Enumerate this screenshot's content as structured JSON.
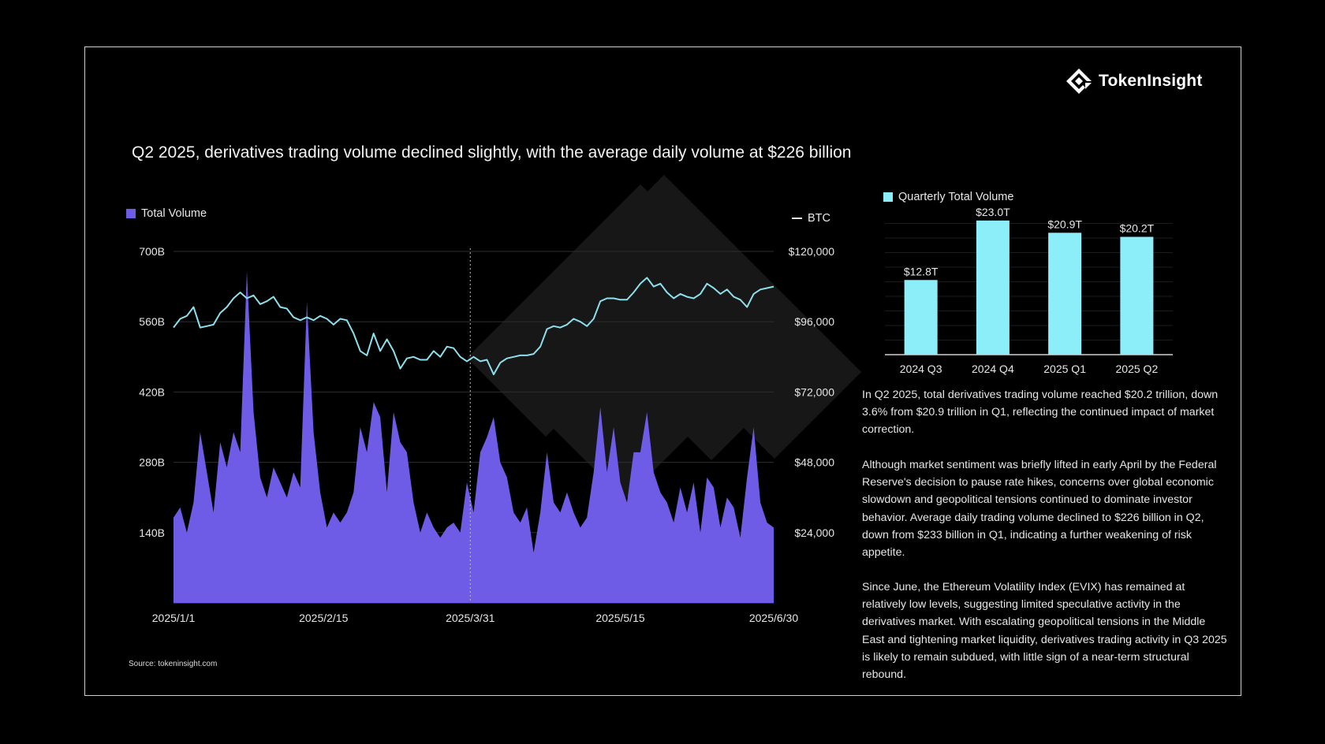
{
  "brand": {
    "name": "TokenInsight"
  },
  "title": "Q2 2025, derivatives trading volume declined slightly, with the average daily volume at $226 billion",
  "source": "Source: tokeninsight.com",
  "colors": {
    "volume": "#6e5ce6",
    "btc": "#8be0ec",
    "quarterly": "#8ceef9",
    "background": "#000000"
  },
  "main_chart": {
    "legend_volume": "Total Volume",
    "legend_btc": "BTC",
    "y_left_ticks": [
      "140B",
      "280B",
      "420B",
      "560B",
      "700B"
    ],
    "y_right_ticks": [
      "$24,000",
      "$48,000",
      "$72,000",
      "$96,000",
      "$120,000"
    ],
    "x_ticks": [
      "2025/1/1",
      "2025/2/15",
      "2025/3/31",
      "2025/5/15",
      "2025/6/30"
    ]
  },
  "bar_chart": {
    "legend": "Quarterly Total Volume",
    "categories": [
      "2024 Q3",
      "2024 Q4",
      "2025 Q1",
      "2025 Q2"
    ],
    "labels": [
      "$12.8T",
      "$23.0T",
      "$20.9T",
      "$20.2T"
    ]
  },
  "paragraphs": [
    "In Q2 2025, total derivatives trading volume reached $20.2 trillion, down 3.6% from $20.9 trillion in Q1, reflecting the continued impact of market correction.",
    "Although market sentiment was briefly lifted in early April by the Federal Reserve's decision to pause rate hikes, concerns over global economic slowdown and geopolitical tensions continued to dominate investor behavior. Average daily trading volume declined to $226 billion in Q2, down from $233 billion in Q1, indicating a further weakening of risk appetite.",
    "Since June, the Ethereum Volatility Index (EVIX) has remained at relatively low levels, suggesting limited speculative activity in the derivatives market. With escalating geopolitical tensions in the Middle East and tightening market liquidity, derivatives trading activity in Q3 2025 is likely to remain subdued, with little sign of a near-term structural rebound."
  ],
  "chart_data": [
    {
      "type": "area",
      "title": "",
      "x_range": [
        "2025-01-01",
        "2025-06-30"
      ],
      "divider_date": "2025-03-31",
      "series": [
        {
          "name": "Total Volume",
          "unit": "B",
          "axis": "left",
          "ylim": [
            0,
            700
          ],
          "points": [
            [
              "2025-01-01",
              170
            ],
            [
              "2025-01-03",
              190
            ],
            [
              "2025-01-05",
              140
            ],
            [
              "2025-01-07",
              200
            ],
            [
              "2025-01-09",
              340
            ],
            [
              "2025-01-11",
              260
            ],
            [
              "2025-01-13",
              180
            ],
            [
              "2025-01-15",
              320
            ],
            [
              "2025-01-17",
              270
            ],
            [
              "2025-01-19",
              340
            ],
            [
              "2025-01-21",
              300
            ],
            [
              "2025-01-23",
              660
            ],
            [
              "2025-01-25",
              380
            ],
            [
              "2025-01-27",
              250
            ],
            [
              "2025-01-29",
              210
            ],
            [
              "2025-01-31",
              270
            ],
            [
              "2025-02-02",
              240
            ],
            [
              "2025-02-04",
              210
            ],
            [
              "2025-02-06",
              260
            ],
            [
              "2025-02-08",
              230
            ],
            [
              "2025-02-10",
              600
            ],
            [
              "2025-02-12",
              340
            ],
            [
              "2025-02-14",
              220
            ],
            [
              "2025-02-16",
              150
            ],
            [
              "2025-02-18",
              180
            ],
            [
              "2025-02-20",
              160
            ],
            [
              "2025-02-22",
              180
            ],
            [
              "2025-02-24",
              220
            ],
            [
              "2025-02-26",
              350
            ],
            [
              "2025-02-28",
              300
            ],
            [
              "2025-03-02",
              400
            ],
            [
              "2025-03-04",
              370
            ],
            [
              "2025-03-06",
              220
            ],
            [
              "2025-03-08",
              380
            ],
            [
              "2025-03-10",
              320
            ],
            [
              "2025-03-12",
              300
            ],
            [
              "2025-03-14",
              200
            ],
            [
              "2025-03-16",
              140
            ],
            [
              "2025-03-18",
              180
            ],
            [
              "2025-03-20",
              150
            ],
            [
              "2025-03-22",
              130
            ],
            [
              "2025-03-24",
              150
            ],
            [
              "2025-03-26",
              160
            ],
            [
              "2025-03-28",
              140
            ],
            [
              "2025-03-30",
              240
            ],
            [
              "2025-04-01",
              180
            ],
            [
              "2025-04-03",
              300
            ],
            [
              "2025-04-05",
              330
            ],
            [
              "2025-04-07",
              370
            ],
            [
              "2025-04-09",
              280
            ],
            [
              "2025-04-11",
              250
            ],
            [
              "2025-04-13",
              180
            ],
            [
              "2025-04-15",
              160
            ],
            [
              "2025-04-17",
              190
            ],
            [
              "2025-04-19",
              100
            ],
            [
              "2025-04-21",
              180
            ],
            [
              "2025-04-23",
              300
            ],
            [
              "2025-04-25",
              200
            ],
            [
              "2025-04-27",
              180
            ],
            [
              "2025-04-29",
              220
            ],
            [
              "2025-05-01",
              180
            ],
            [
              "2025-05-03",
              150
            ],
            [
              "2025-05-05",
              170
            ],
            [
              "2025-05-07",
              260
            ],
            [
              "2025-05-09",
              390
            ],
            [
              "2025-05-11",
              260
            ],
            [
              "2025-05-13",
              350
            ],
            [
              "2025-05-15",
              240
            ],
            [
              "2025-05-17",
              200
            ],
            [
              "2025-05-19",
              300
            ],
            [
              "2025-05-21",
              300
            ],
            [
              "2025-05-23",
              380
            ],
            [
              "2025-05-25",
              260
            ],
            [
              "2025-05-27",
              220
            ],
            [
              "2025-05-29",
              200
            ],
            [
              "2025-05-31",
              160
            ],
            [
              "2025-06-02",
              230
            ],
            [
              "2025-06-04",
              180
            ],
            [
              "2025-06-06",
              240
            ],
            [
              "2025-06-08",
              140
            ],
            [
              "2025-06-10",
              250
            ],
            [
              "2025-06-12",
              230
            ],
            [
              "2025-06-14",
              150
            ],
            [
              "2025-06-16",
              210
            ],
            [
              "2025-06-18",
              190
            ],
            [
              "2025-06-20",
              130
            ],
            [
              "2025-06-22",
              250
            ],
            [
              "2025-06-24",
              350
            ],
            [
              "2025-06-26",
              200
            ],
            [
              "2025-06-28",
              160
            ],
            [
              "2025-06-30",
              150
            ]
          ]
        },
        {
          "name": "BTC",
          "unit": "$",
          "axis": "right",
          "ylim": [
            0,
            120000
          ],
          "points": [
            [
              "2025-01-01",
              94000
            ],
            [
              "2025-01-03",
              97000
            ],
            [
              "2025-01-05",
              98000
            ],
            [
              "2025-01-07",
              101000
            ],
            [
              "2025-01-09",
              94000
            ],
            [
              "2025-01-11",
              94500
            ],
            [
              "2025-01-13",
              95000
            ],
            [
              "2025-01-15",
              99000
            ],
            [
              "2025-01-17",
              101000
            ],
            [
              "2025-01-19",
              104000
            ],
            [
              "2025-01-21",
              106000
            ],
            [
              "2025-01-23",
              104000
            ],
            [
              "2025-01-25",
              105000
            ],
            [
              "2025-01-27",
              102000
            ],
            [
              "2025-01-29",
              103000
            ],
            [
              "2025-01-31",
              104500
            ],
            [
              "2025-02-02",
              101000
            ],
            [
              "2025-02-04",
              100500
            ],
            [
              "2025-02-06",
              97500
            ],
            [
              "2025-02-08",
              96500
            ],
            [
              "2025-02-10",
              97500
            ],
            [
              "2025-02-12",
              96500
            ],
            [
              "2025-02-14",
              98000
            ],
            [
              "2025-02-16",
              97000
            ],
            [
              "2025-02-18",
              95000
            ],
            [
              "2025-02-20",
              97000
            ],
            [
              "2025-02-22",
              96500
            ],
            [
              "2025-02-24",
              92000
            ],
            [
              "2025-02-26",
              86000
            ],
            [
              "2025-02-28",
              84500
            ],
            [
              "2025-03-02",
              92000
            ],
            [
              "2025-03-04",
              86000
            ],
            [
              "2025-03-06",
              90000
            ],
            [
              "2025-03-08",
              86000
            ],
            [
              "2025-03-10",
              80000
            ],
            [
              "2025-03-12",
              83500
            ],
            [
              "2025-03-14",
              84000
            ],
            [
              "2025-03-16",
              83000
            ],
            [
              "2025-03-18",
              83000
            ],
            [
              "2025-03-20",
              86000
            ],
            [
              "2025-03-22",
              84000
            ],
            [
              "2025-03-24",
              87500
            ],
            [
              "2025-03-26",
              87000
            ],
            [
              "2025-03-28",
              84000
            ],
            [
              "2025-03-30",
              82500
            ],
            [
              "2025-04-01",
              84000
            ],
            [
              "2025-04-03",
              82500
            ],
            [
              "2025-04-05",
              83000
            ],
            [
              "2025-04-07",
              78000
            ],
            [
              "2025-04-09",
              82000
            ],
            [
              "2025-04-11",
              83500
            ],
            [
              "2025-04-13",
              84000
            ],
            [
              "2025-04-15",
              84500
            ],
            [
              "2025-04-17",
              84500
            ],
            [
              "2025-04-19",
              85000
            ],
            [
              "2025-04-21",
              87500
            ],
            [
              "2025-04-23",
              93500
            ],
            [
              "2025-04-25",
              94500
            ],
            [
              "2025-04-27",
              94000
            ],
            [
              "2025-04-29",
              95000
            ],
            [
              "2025-05-01",
              97000
            ],
            [
              "2025-05-03",
              96000
            ],
            [
              "2025-05-05",
              94500
            ],
            [
              "2025-05-07",
              97000
            ],
            [
              "2025-05-09",
              103000
            ],
            [
              "2025-05-11",
              104000
            ],
            [
              "2025-05-13",
              104000
            ],
            [
              "2025-05-15",
              103500
            ],
            [
              "2025-05-17",
              103500
            ],
            [
              "2025-05-19",
              106000
            ],
            [
              "2025-05-21",
              109000
            ],
            [
              "2025-05-23",
              111000
            ],
            [
              "2025-05-25",
              108000
            ],
            [
              "2025-05-27",
              109000
            ],
            [
              "2025-05-29",
              106000
            ],
            [
              "2025-05-31",
              104000
            ],
            [
              "2025-06-02",
              105500
            ],
            [
              "2025-06-04",
              104500
            ],
            [
              "2025-06-06",
              104000
            ],
            [
              "2025-06-08",
              105500
            ],
            [
              "2025-06-10",
              109000
            ],
            [
              "2025-06-12",
              107500
            ],
            [
              "2025-06-14",
              105500
            ],
            [
              "2025-06-16",
              107000
            ],
            [
              "2025-06-18",
              104500
            ],
            [
              "2025-06-20",
              103500
            ],
            [
              "2025-06-22",
              101000
            ],
            [
              "2025-06-24",
              105500
            ],
            [
              "2025-06-26",
              107000
            ],
            [
              "2025-06-28",
              107500
            ],
            [
              "2025-06-30",
              108000
            ]
          ]
        }
      ]
    },
    {
      "type": "bar",
      "title": "",
      "categories": [
        "2024 Q3",
        "2024 Q4",
        "2025 Q1",
        "2025 Q2"
      ],
      "series": [
        {
          "name": "Quarterly Total Volume",
          "unit": "T",
          "values": [
            12.8,
            23.0,
            20.9,
            20.2
          ]
        }
      ],
      "ylim": [
        0,
        25
      ]
    }
  ]
}
